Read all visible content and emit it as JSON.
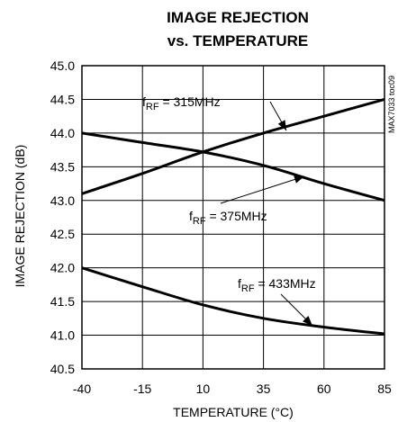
{
  "chart_data": {
    "type": "line",
    "title": [
      "IMAGE REJECTION",
      "vs. TEMPERATURE"
    ],
    "xlabel": "TEMPERATURE (°C)",
    "ylabel": "IMAGE REJECTION (dB)",
    "xlim": [
      -40,
      85
    ],
    "ylim": [
      40.5,
      45.0
    ],
    "xticks": [
      -40,
      -15,
      10,
      35,
      60,
      85
    ],
    "yticks": [
      40.5,
      41.0,
      41.5,
      42.0,
      42.5,
      43.0,
      43.5,
      44.0,
      44.5,
      45.0
    ],
    "xtick_labels": [
      "-40",
      "-15",
      "10",
      "35",
      "60",
      "85"
    ],
    "ytick_labels": [
      "40.5",
      "41.0",
      "41.5",
      "42.0",
      "42.5",
      "43.0",
      "43.5",
      "44.0",
      "44.5",
      "45.0"
    ],
    "grid": true,
    "series": [
      {
        "name": "fRF = 315MHz",
        "label_main": "f",
        "label_sub": "RF",
        "label_rest": " = 315MHz",
        "x": [
          -40,
          -15,
          10,
          35,
          60,
          85
        ],
        "y": [
          43.1,
          43.4,
          43.72,
          44.0,
          44.25,
          44.5
        ]
      },
      {
        "name": "fRF = 375MHz",
        "label_main": "f",
        "label_sub": "RF",
        "label_rest": " = 375MHz",
        "x": [
          -40,
          -15,
          10,
          35,
          60,
          85
        ],
        "y": [
          44.0,
          43.86,
          43.72,
          43.52,
          43.25,
          43.0
        ]
      },
      {
        "name": "fRF = 433MHz",
        "label_main": "f",
        "label_sub": "RF",
        "label_rest": " = 433MHz",
        "x": [
          -40,
          -15,
          10,
          35,
          60,
          85
        ],
        "y": [
          42.0,
          41.72,
          41.45,
          41.25,
          41.12,
          41.02
        ]
      }
    ],
    "side_code": "MAX7033 toc09"
  }
}
